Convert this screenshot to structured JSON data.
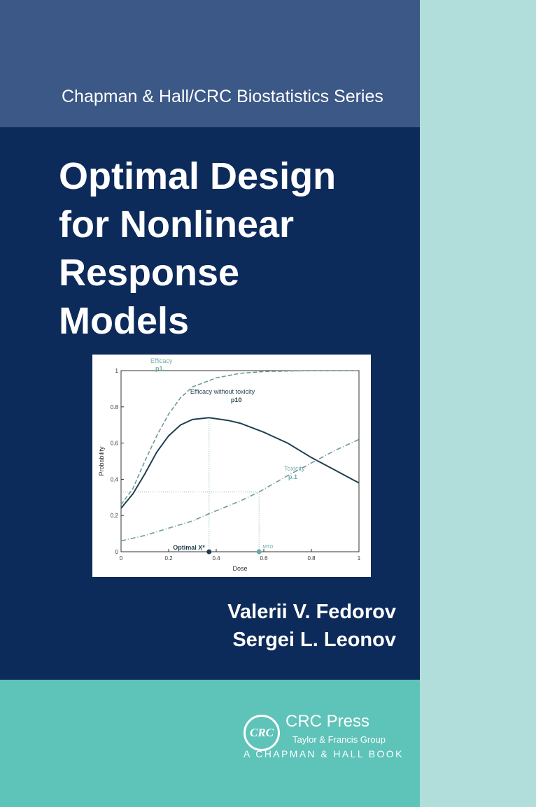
{
  "cover": {
    "series": "Chapman & Hall/CRC Biostatistics Series",
    "title_lines": [
      "Optimal Design",
      "for Nonlinear",
      "Response",
      "Models"
    ],
    "authors": [
      "Valerii V. Fedorov",
      "Sergei L. Leonov"
    ],
    "publisher": {
      "logo_text": "CRC",
      "name": "CRC Press",
      "group": "Taylor & Francis Group",
      "imprint": "A CHAPMAN & HALL BOOK"
    },
    "colors": {
      "top_band": "#3b5886",
      "main": "#0d2b5a",
      "bottom": "#5ec3b8",
      "strip": "#b1deda"
    }
  },
  "chart_data": {
    "type": "line",
    "xlabel": "Dose",
    "ylabel": "Probability",
    "xlim": [
      0,
      1
    ],
    "ylim": [
      0,
      1
    ],
    "xticks": [
      "0",
      "0.2",
      "0.4",
      "0.6",
      "0.8",
      "1"
    ],
    "yticks": [
      "0",
      "0.2",
      "0.4",
      "0.6",
      "0.8",
      "1"
    ],
    "series": [
      {
        "name": "Efficacy p1.",
        "label1": "Efficacy",
        "label2": "p1.",
        "style": "dashed",
        "color": "#6f9a9a",
        "x": [
          0,
          0.05,
          0.1,
          0.15,
          0.2,
          0.25,
          0.3,
          0.4,
          0.5,
          0.6,
          0.8,
          1
        ],
        "y": [
          0.26,
          0.35,
          0.5,
          0.64,
          0.76,
          0.85,
          0.91,
          0.96,
          0.985,
          0.995,
          1,
          1
        ]
      },
      {
        "name": "Efficacy without toxicity p10",
        "label1": "Efficacy without toxicity",
        "label2": "p10",
        "style": "solid",
        "color": "#1f3f4f",
        "x": [
          0,
          0.05,
          0.1,
          0.15,
          0.2,
          0.25,
          0.3,
          0.37,
          0.45,
          0.5,
          0.6,
          0.7,
          0.8,
          0.9,
          1
        ],
        "y": [
          0.24,
          0.32,
          0.43,
          0.55,
          0.64,
          0.7,
          0.73,
          0.74,
          0.725,
          0.71,
          0.66,
          0.6,
          0.52,
          0.45,
          0.38
        ]
      },
      {
        "name": "Toxicity p.1",
        "label1": "Toxicity",
        "label2": "p.1",
        "style": "dashdot",
        "color": "#6f9a9a",
        "x": [
          0,
          0.1,
          0.2,
          0.3,
          0.37,
          0.5,
          0.58,
          0.7,
          0.8,
          0.9,
          1
        ],
        "y": [
          0.06,
          0.09,
          0.13,
          0.17,
          0.21,
          0.28,
          0.33,
          0.42,
          0.49,
          0.56,
          0.62
        ]
      }
    ],
    "annotations": [
      {
        "text": "Optimal X*",
        "x": 0.37
      },
      {
        "text": "MTD",
        "x": 0.58
      }
    ],
    "reference_y": 0.33
  }
}
